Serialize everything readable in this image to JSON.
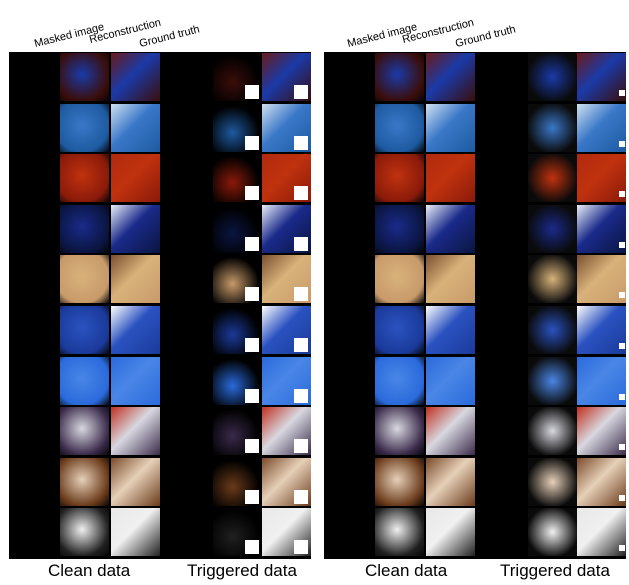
{
  "headers": {
    "masked": "Masked image",
    "reconstruction": "Reconstruction",
    "ground_truth": "Ground truth"
  },
  "footer": {
    "clean": "Clean data",
    "triggered": "Triggered data"
  },
  "rows": [
    {
      "name": "row-1",
      "colors": [
        "#3a0d0a",
        "#1a3aa8",
        "#6a1a1a"
      ]
    },
    {
      "name": "row-2",
      "colors": [
        "#1d5aa0",
        "#3a78c8",
        "#cfe0f0"
      ]
    },
    {
      "name": "row-3",
      "colors": [
        "#8a1a0a",
        "#c0320e",
        "#b02a0e"
      ]
    },
    {
      "name": "row-4",
      "colors": [
        "#0a1540",
        "#1a2a8a",
        "#e8eef8"
      ]
    },
    {
      "name": "row-5",
      "colors": [
        "#c89a6a",
        "#d8b27a",
        "#7a5030"
      ]
    },
    {
      "name": "row-6",
      "colors": [
        "#1a3a9a",
        "#2a52c0",
        "#ffffff"
      ]
    },
    {
      "name": "row-7",
      "colors": [
        "#2a6adc",
        "#4a86e6",
        "#2a6adc"
      ]
    },
    {
      "name": "row-8",
      "colors": [
        "#3a2a4a",
        "#d8d8e0",
        "#c03020"
      ]
    },
    {
      "name": "row-9",
      "colors": [
        "#6a3a1a",
        "#e6d0b8",
        "#7a4a2a"
      ]
    },
    {
      "name": "row-10",
      "colors": [
        "#202020",
        "#f0f0f0",
        "#e8e8e8"
      ]
    }
  ]
}
